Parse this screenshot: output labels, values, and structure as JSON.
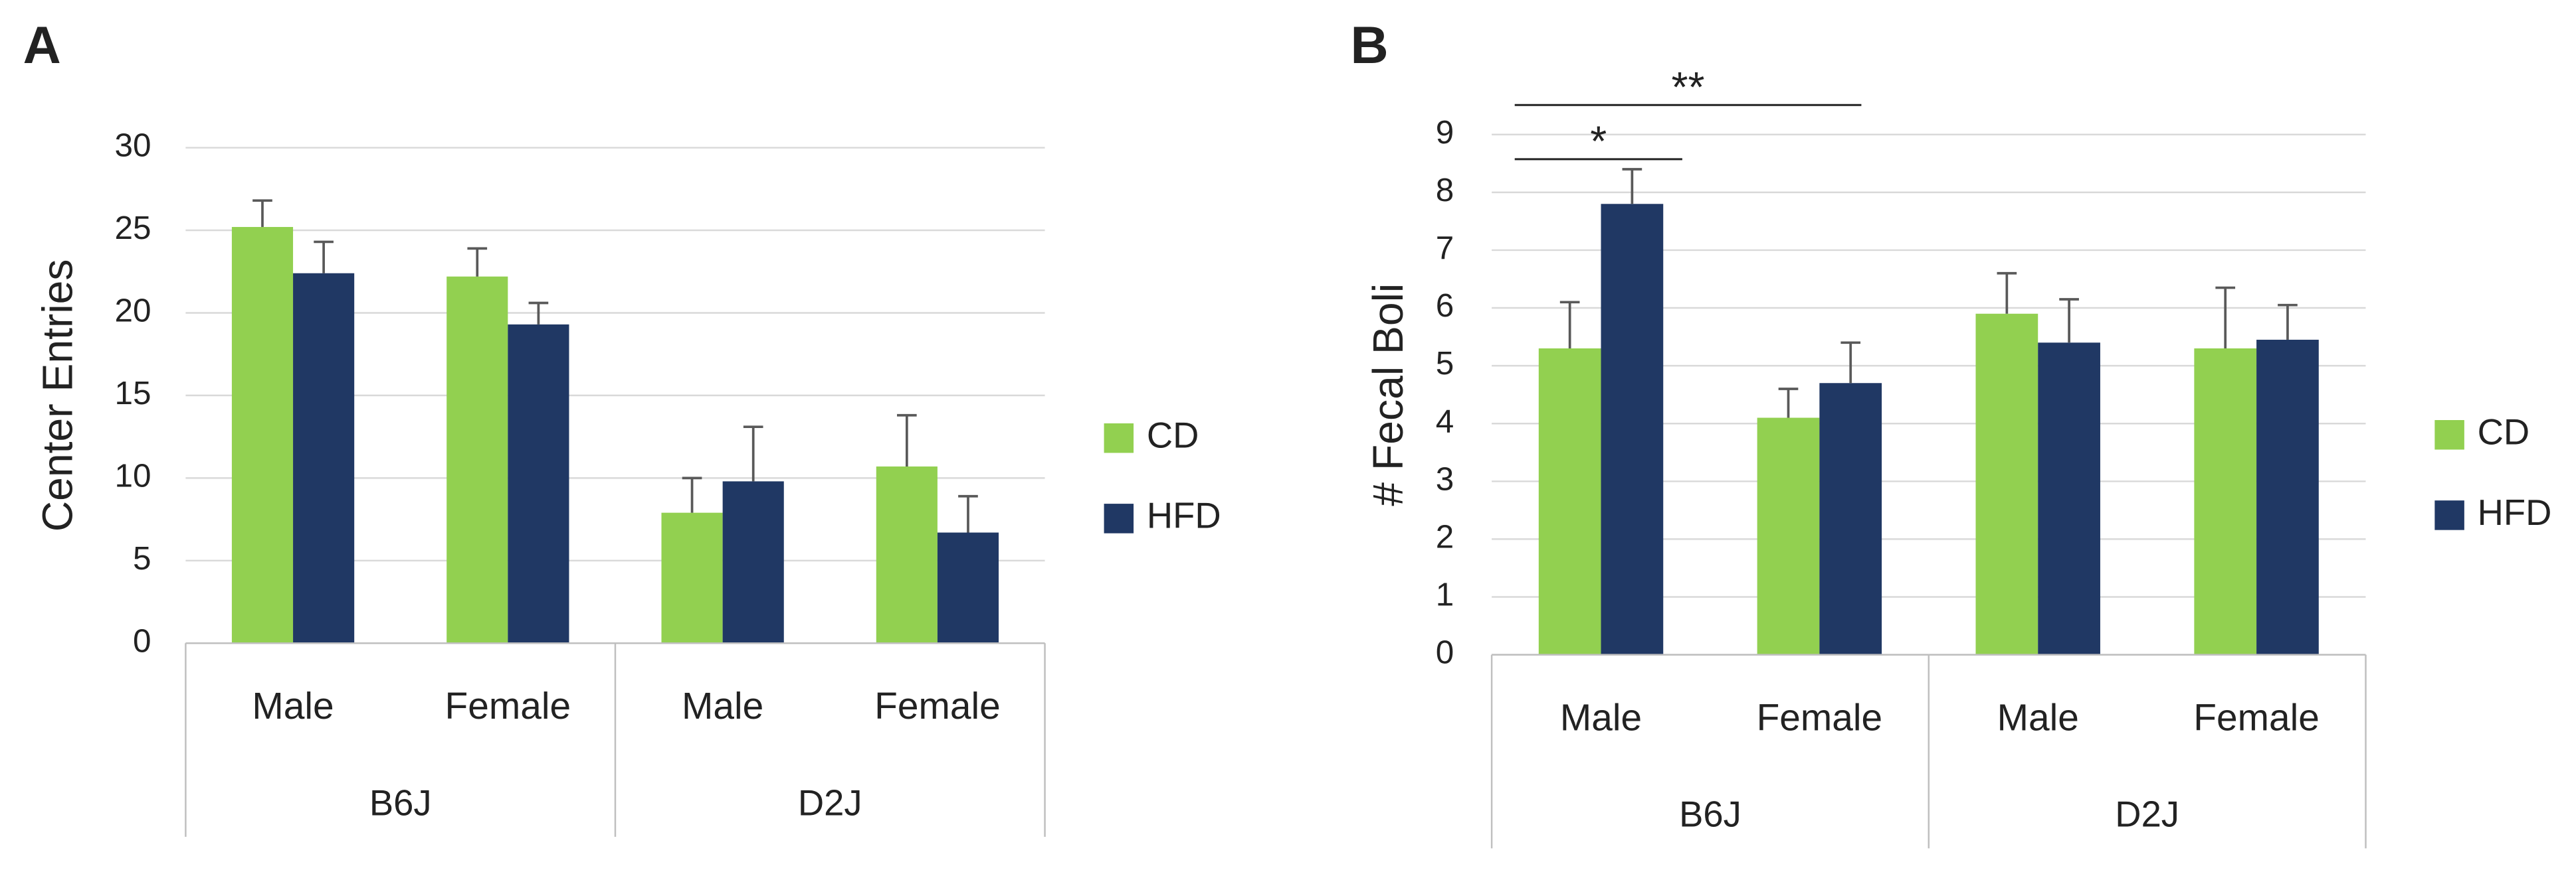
{
  "chart_data": [
    {
      "type": "bar",
      "panel": "A",
      "y_label": "Center Entries",
      "categories": [
        "Male",
        "Female",
        "Male",
        "Female"
      ],
      "groups": [
        "B6J",
        "D2J"
      ],
      "series": [
        {
          "name": "CD",
          "color": "#92d050",
          "values": [
            25.2,
            22.2,
            7.9,
            10.7
          ],
          "errors": [
            1.6,
            1.7,
            2.1,
            3.1
          ]
        },
        {
          "name": "HFD",
          "color": "#203864",
          "values": [
            22.4,
            19.3,
            9.8,
            6.7
          ],
          "errors": [
            1.9,
            1.3,
            3.3,
            2.2
          ]
        }
      ],
      "ylim": [
        0,
        30
      ],
      "yticks": [
        0,
        5,
        10,
        15,
        20,
        25,
        30
      ],
      "grid": true,
      "legend": "right"
    },
    {
      "type": "bar",
      "panel": "B",
      "y_label": "# Fecal Boli",
      "categories": [
        "Male",
        "Female",
        "Male",
        "Female"
      ],
      "groups": [
        "B6J",
        "D2J"
      ],
      "series": [
        {
          "name": "CD",
          "color": "#92d050",
          "values": [
            5.3,
            4.1,
            5.9,
            5.3
          ],
          "errors": [
            0.8,
            0.5,
            0.7,
            1.05
          ]
        },
        {
          "name": "HFD",
          "color": "#203864",
          "values": [
            7.8,
            4.7,
            5.4,
            5.45
          ],
          "errors": [
            0.6,
            0.7,
            0.75,
            0.6
          ]
        }
      ],
      "ylim": [
        0,
        9
      ],
      "yticks": [
        0,
        1,
        2,
        3,
        4,
        5,
        6,
        7,
        8,
        9
      ],
      "grid": true,
      "legend": "right",
      "annotations": [
        "*",
        "**"
      ]
    }
  ]
}
